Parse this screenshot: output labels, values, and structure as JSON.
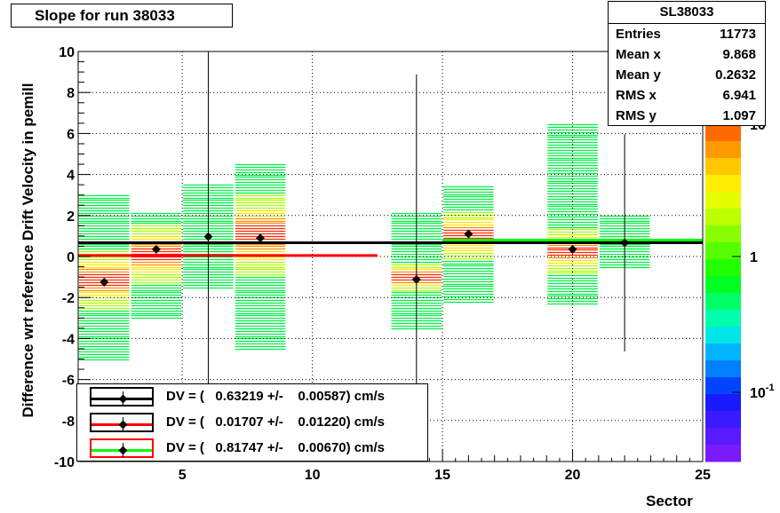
{
  "window": {
    "title": "Slope for run 38033"
  },
  "stats_box": {
    "name": "SL38033",
    "rows": [
      {
        "key": "Entries",
        "value": "11773"
      },
      {
        "key": "Mean x",
        "value": "9.868"
      },
      {
        "key": "Mean y",
        "value": "0.2632"
      },
      {
        "key": "RMS x",
        "value": "6.941"
      },
      {
        "key": "RMS y",
        "value": "1.097"
      }
    ]
  },
  "legend": [
    {
      "label": "DV = (   0.63219 +/-    0.00587) cm/s",
      "line_color": "#000000",
      "border_color": "#000000"
    },
    {
      "label": "DV = (   0.01707 +/-    0.01220) cm/s",
      "line_color": "#ff0000",
      "border_color": "#000000"
    },
    {
      "label": "DV = (   0.81747 +/-    0.00670) cm/s",
      "line_color": "#00ff00",
      "border_color": "#ff0000"
    }
  ],
  "colors": {
    "axis": "#000000",
    "grid": "#000000",
    "fit_black": "#000000",
    "fit_red": "#ff0000",
    "fit_green": "#00ff00"
  },
  "chart_data": {
    "type": "scatter",
    "title": "Slope for run 38033",
    "xlabel": "Sector",
    "ylabel": "Difference wrt reference Drift Velocity in pemill",
    "xlim": [
      1,
      25
    ],
    "ylim": [
      -10,
      10
    ],
    "x_ticks": [
      5,
      10,
      15,
      20,
      25
    ],
    "y_ticks": [
      -10,
      -8,
      -6,
      -4,
      -2,
      0,
      2,
      4,
      6,
      8,
      10
    ],
    "grid": true,
    "legend_position": "bottom-left",
    "colz_scale": {
      "type": "log",
      "tick_labels": [
        "10",
        "1",
        "10-1"
      ]
    },
    "series": [
      {
        "name": "profile",
        "points": [
          {
            "x": 2,
            "y": -1.25,
            "err": 0.0
          },
          {
            "x": 4,
            "y": 0.35,
            "err": 0.0
          },
          {
            "x": 6,
            "y": 0.97,
            "err": 10.5
          },
          {
            "x": 8,
            "y": 0.9,
            "err": 0.0
          },
          {
            "x": 14,
            "y": -1.12,
            "err": 10.0
          },
          {
            "x": 16,
            "y": 1.1,
            "err": 0.0
          },
          {
            "x": 20,
            "y": 0.35,
            "err": 0.0
          },
          {
            "x": 22,
            "y": 0.67,
            "err": 5.3
          }
        ]
      }
    ],
    "fit_lines": [
      {
        "color": "black",
        "x": [
          1,
          25
        ],
        "y": [
          0.67,
          0.67
        ]
      },
      {
        "color": "red",
        "x": [
          1,
          12.5
        ],
        "y": [
          0.05,
          0.05
        ]
      },
      {
        "color": "green",
        "x": [
          15,
          25
        ],
        "y": [
          0.8,
          0.8
        ]
      }
    ],
    "heatmap_columns": [
      {
        "x0": 1,
        "x1": 3,
        "ymin": -5.0,
        "ymax": 3.0,
        "hot": [
          -1.8,
          -0.5
        ]
      },
      {
        "x0": 3,
        "x1": 5,
        "ymin": -3.0,
        "ymax": 2.2,
        "hot": [
          -0.5,
          0.8
        ]
      },
      {
        "x0": 5,
        "x1": 7,
        "ymin": -1.5,
        "ymax": 3.5,
        "hot": null
      },
      {
        "x0": 7,
        "x1": 9,
        "ymin": -4.5,
        "ymax": 4.5,
        "hot": [
          0.2,
          2.0
        ]
      },
      {
        "x0": 13,
        "x1": 15,
        "ymin": -3.5,
        "ymax": 2.2,
        "hot": [
          -1.3,
          -0.7
        ]
      },
      {
        "x0": 15,
        "x1": 17,
        "ymin": -2.2,
        "ymax": 3.5,
        "hot": [
          0.5,
          1.6
        ]
      },
      {
        "x0": 19,
        "x1": 21,
        "ymin": -2.3,
        "ymax": 6.5,
        "hot": [
          -0.2,
          0.8
        ]
      },
      {
        "x0": 21,
        "x1": 23,
        "ymin": -0.5,
        "ymax": 2.0,
        "hot": null
      }
    ]
  }
}
